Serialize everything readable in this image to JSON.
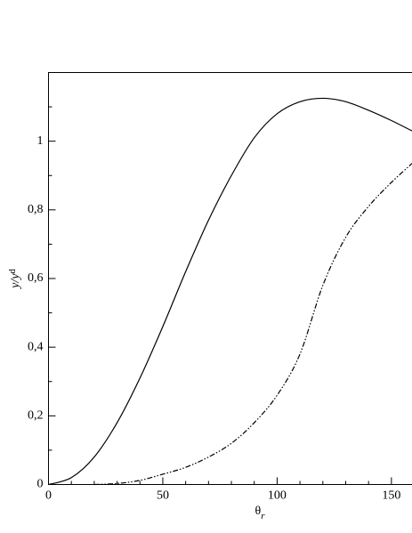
{
  "chart_data": {
    "type": "line",
    "xlabel": {
      "main": "θ",
      "sub": "r"
    },
    "ylabel": {
      "main": "y/y",
      "sub": "d"
    },
    "x": [
      0,
      10,
      20,
      30,
      40,
      50,
      60,
      70,
      80,
      90,
      100,
      110,
      120,
      130,
      140,
      150,
      159
    ],
    "series": [
      {
        "color": "#000000",
        "dash": "solid",
        "values": [
          0,
          0.02,
          0.08,
          0.18,
          0.31,
          0.46,
          0.62,
          0.77,
          0.9,
          1.01,
          1.08,
          1.115,
          1.125,
          1.115,
          1.09,
          1.06,
          1.03
        ]
      },
      {
        "color": "#000000",
        "dash": "dashdotdot",
        "values": [
          null,
          null,
          0,
          0.003,
          0.012,
          0.03,
          0.05,
          0.08,
          0.12,
          0.18,
          0.26,
          0.38,
          0.58,
          0.72,
          0.81,
          0.88,
          0.935
        ]
      }
    ],
    "xlim": [
      0,
      159
    ],
    "ylim": [
      0,
      1.2
    ],
    "xticks": [
      0,
      50,
      100,
      150
    ],
    "yticks": [
      0,
      {
        "value": 0.2,
        "label": "0,2"
      },
      {
        "value": 0.4,
        "label": "0,4"
      },
      {
        "value": 0.6,
        "label": "0,6"
      },
      {
        "value": 0.8,
        "label": "0,8"
      },
      1
    ],
    "xminor_ticks": [
      10,
      20,
      30,
      40,
      60,
      70,
      80,
      90,
      110,
      120,
      130,
      140
    ],
    "yminor_ticks": [
      0.1,
      0.3,
      0.5,
      0.7,
      0.9,
      1.1
    ],
    "grid": false
  }
}
